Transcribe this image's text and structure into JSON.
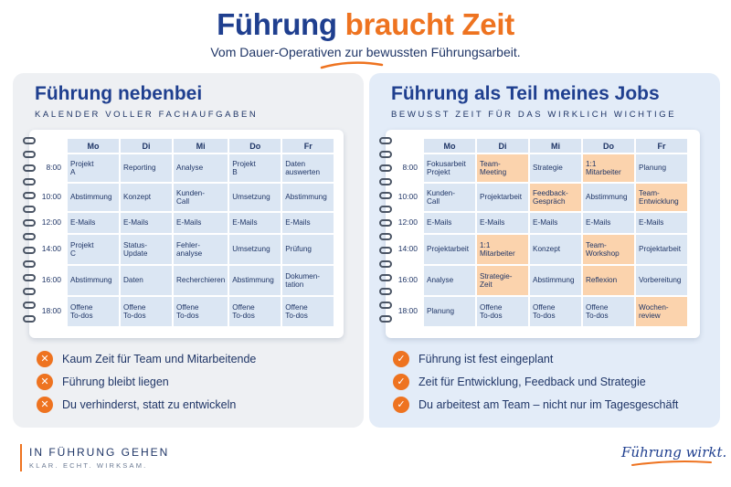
{
  "header": {
    "title_part1": "Führung",
    "title_part2": "braucht Zeit",
    "subtitle": "Vom Dauer-Operativen zur bewussten Führungsarbeit."
  },
  "colors": {
    "accent": "#ee7320",
    "primary": "#1f3f8f",
    "cell": "#dbe6f3",
    "highlight": "#fbd3ad"
  },
  "left": {
    "title": "Führung nebenbei",
    "subtitle": "KALENDER VOLLER FACHAUFGABEN",
    "days": [
      "Mo",
      "Di",
      "Mi",
      "Do",
      "Fr"
    ],
    "rows": [
      {
        "time": "8:00",
        "cells": [
          {
            "text": "Projekt\nA"
          },
          {
            "text": "Reporting"
          },
          {
            "text": "Analyse"
          },
          {
            "text": "Projekt\nB"
          },
          {
            "text": "Daten\nauswerten"
          }
        ]
      },
      {
        "time": "10:00",
        "cells": [
          {
            "text": "Abstimmung"
          },
          {
            "text": "Konzept"
          },
          {
            "text": "Kunden-\nCall"
          },
          {
            "text": "Umsetzung"
          },
          {
            "text": "Abstimmung"
          }
        ]
      },
      {
        "time": "12:00",
        "cells": [
          {
            "text": "E-Mails"
          },
          {
            "text": "E-Mails"
          },
          {
            "text": "E-Mails"
          },
          {
            "text": "E-Mails"
          },
          {
            "text": "E-Mails"
          }
        ]
      },
      {
        "time": "14:00",
        "cells": [
          {
            "text": "Projekt\nC"
          },
          {
            "text": "Status-\nUpdate"
          },
          {
            "text": "Fehler-\nanalyse"
          },
          {
            "text": "Umsetzung"
          },
          {
            "text": "Prüfung"
          }
        ]
      },
      {
        "time": "16:00",
        "cells": [
          {
            "text": "Abstimmung"
          },
          {
            "text": "Daten"
          },
          {
            "text": "Recherchieren"
          },
          {
            "text": "Abstimmung"
          },
          {
            "text": "Dokumen-\ntation"
          }
        ]
      },
      {
        "time": "18:00",
        "cells": [
          {
            "text": "Offene\nTo-dos"
          },
          {
            "text": "Offene\nTo-dos"
          },
          {
            "text": "Offene\nTo-dos"
          },
          {
            "text": "Offene\nTo-dos"
          },
          {
            "text": "Offene\nTo-dos"
          }
        ]
      }
    ],
    "bullet_icon": "x-circle-icon",
    "bullet_symbol": "✕",
    "bullets": [
      "Kaum Zeit für Team und Mitarbeitende",
      "Führung bleibt liegen",
      "Du verhinderst, statt zu entwickeln"
    ]
  },
  "right": {
    "title": "Führung als Teil meines Jobs",
    "subtitle": "BEWUSST ZEIT FÜR DAS WIRKLICH WICHTIGE",
    "days": [
      "Mo",
      "Di",
      "Mi",
      "Do",
      "Fr"
    ],
    "rows": [
      {
        "time": "8:00",
        "cells": [
          {
            "text": "Fokusarbeit\nProjekt"
          },
          {
            "text": "Team-\nMeeting",
            "hl": true
          },
          {
            "text": "Strategie"
          },
          {
            "text": "1:1\nMitarbeiter",
            "hl": true
          },
          {
            "text": "Planung"
          }
        ]
      },
      {
        "time": "10:00",
        "cells": [
          {
            "text": "Kunden-\nCall"
          },
          {
            "text": "Projektarbeit"
          },
          {
            "text": "Feedback-\nGespräch",
            "hl": true
          },
          {
            "text": "Abstimmung"
          },
          {
            "text": "Team-\nEntwicklung",
            "hl": true
          }
        ]
      },
      {
        "time": "12:00",
        "cells": [
          {
            "text": "E-Mails"
          },
          {
            "text": "E-Mails"
          },
          {
            "text": "E-Mails"
          },
          {
            "text": "E-Mails"
          },
          {
            "text": "E-Mails"
          }
        ]
      },
      {
        "time": "14:00",
        "cells": [
          {
            "text": "Projektarbeit"
          },
          {
            "text": "1:1\nMitarbeiter",
            "hl": true
          },
          {
            "text": "Konzept"
          },
          {
            "text": "Team-\nWorkshop",
            "hl": true
          },
          {
            "text": "Projektarbeit"
          }
        ]
      },
      {
        "time": "16:00",
        "cells": [
          {
            "text": "Analyse"
          },
          {
            "text": "Strategie-\nZeit",
            "hl": true
          },
          {
            "text": "Abstimmung"
          },
          {
            "text": "Reflexion",
            "hl": true
          },
          {
            "text": "Vorbereitung"
          }
        ]
      },
      {
        "time": "18:00",
        "cells": [
          {
            "text": "Planung"
          },
          {
            "text": "Offene\nTo-dos"
          },
          {
            "text": "Offene\nTo-dos"
          },
          {
            "text": "Offene\nTo-dos"
          },
          {
            "text": "Wochen-\nreview",
            "hl": true
          }
        ]
      }
    ],
    "bullet_icon": "check-circle-icon",
    "bullet_symbol": "✓",
    "bullets": [
      "Führung ist fest eingeplant",
      "Zeit für Entwicklung, Feedback und Strategie",
      "Du arbeitest am Team – nicht nur im Tagesgeschäft"
    ]
  },
  "footer": {
    "brand": "IN FÜHRUNG GEHEN",
    "tagline": "KLAR. ECHT. WIRKSAM.",
    "signature": "Führung wirkt."
  }
}
